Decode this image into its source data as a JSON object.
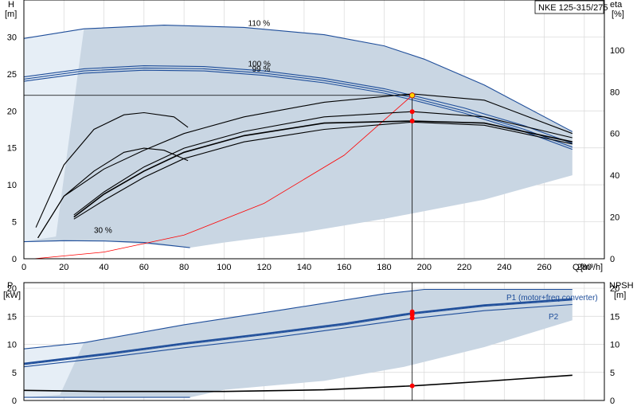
{
  "title": "NKE 125-315/275",
  "colors": {
    "band_fill": "#c9d6e3",
    "band_light": "#e6eef6",
    "curve_blue": "#1f4e9a",
    "curve_black": "#000000",
    "system_red": "#ff0000",
    "marker_yellow": "#ffd700"
  },
  "chart_data": [
    {
      "type": "line",
      "panel": "head",
      "ylabel": "H",
      "yunit": "[m]",
      "y2label": "eta",
      "y2unit": "[%]",
      "xlabel": "Q",
      "xunit": "[m³/h]",
      "xlim": [
        0,
        290
      ],
      "ylim": [
        0,
        35
      ],
      "y2lim": [
        0,
        124
      ],
      "x_ticks": [
        "0",
        "20",
        "40",
        "60",
        "80",
        "100",
        "120",
        "140",
        "160",
        "180",
        "200",
        "220",
        "240",
        "260",
        "280"
      ],
      "y_ticks": [
        "0",
        "5",
        "10",
        "15",
        "20",
        "25",
        "30"
      ],
      "y2_ticks": [
        "0",
        "20",
        "40",
        "60",
        "80",
        "100"
      ],
      "operating_point": {
        "q": 194,
        "h": 22.1
      },
      "speed_labels": [
        {
          "text": "110 %",
          "q": 112,
          "h": 31.5
        },
        {
          "text": "100 %",
          "q": 112,
          "h": 26.0
        },
        {
          "text": "99 %",
          "q": 114,
          "h": 25.3
        },
        {
          "text": "30 %",
          "q": 35,
          "h": 3.5
        }
      ],
      "series": [
        {
          "role": "head-110",
          "color": "blue",
          "points": [
            [
              0,
              29.8
            ],
            [
              30,
              31.1
            ],
            [
              70,
              31.6
            ],
            [
              110,
              31.3
            ],
            [
              150,
              30.3
            ],
            [
              180,
              28.8
            ],
            [
              200,
              27.0
            ],
            [
              230,
              23.5
            ],
            [
              274,
              17.2
            ]
          ]
        },
        {
          "role": "head-100",
          "color": "blue",
          "points": [
            [
              0,
              24.6
            ],
            [
              30,
              25.7
            ],
            [
              60,
              26.1
            ],
            [
              90,
              26.0
            ],
            [
              120,
              25.4
            ],
            [
              150,
              24.4
            ],
            [
              180,
              23.0
            ],
            [
              194,
              22.1
            ],
            [
              220,
              20.4
            ],
            [
              250,
              18.0
            ],
            [
              274,
              15.6
            ]
          ]
        },
        {
          "role": "head-100-b",
          "color": "blue",
          "points": [
            [
              0,
              24.3
            ],
            [
              30,
              25.4
            ],
            [
              60,
              25.8
            ],
            [
              90,
              25.7
            ],
            [
              120,
              25.1
            ],
            [
              150,
              24.1
            ],
            [
              180,
              22.7
            ],
            [
              194,
              21.8
            ],
            [
              220,
              20.0
            ],
            [
              250,
              17.5
            ],
            [
              274,
              15.1
            ]
          ]
        },
        {
          "role": "head-99",
          "color": "blue",
          "points": [
            [
              0,
              24.0
            ],
            [
              30,
              25.1
            ],
            [
              60,
              25.5
            ],
            [
              90,
              25.4
            ],
            [
              120,
              24.8
            ],
            [
              150,
              23.8
            ],
            [
              180,
              22.4
            ],
            [
              194,
              21.5
            ],
            [
              220,
              19.7
            ],
            [
              250,
              17.2
            ],
            [
              274,
              14.8
            ]
          ]
        },
        {
          "role": "head-30",
          "color": "blue",
          "points": [
            [
              0,
              2.3
            ],
            [
              20,
              2.45
            ],
            [
              40,
              2.4
            ],
            [
              60,
              2.2
            ],
            [
              83,
              1.5
            ]
          ]
        },
        {
          "role": "system",
          "color": "red",
          "points": [
            [
              5,
              0
            ],
            [
              40,
              0.9
            ],
            [
              80,
              3.2
            ],
            [
              120,
              7.5
            ],
            [
              160,
              14.0
            ],
            [
              194,
              22.1
            ]
          ]
        },
        {
          "role": "eta-lo",
          "color": "black",
          "axis": "y2",
          "points": [
            [
              7,
              10
            ],
            [
              20,
              30
            ],
            [
              40,
              43
            ],
            [
              60,
              52
            ],
            [
              80,
              60
            ],
            [
              110,
              68
            ],
            [
              150,
              75
            ],
            [
              194,
              79
            ],
            [
              230,
              76
            ],
            [
              274,
              60
            ]
          ]
        },
        {
          "role": "eta-mid",
          "color": "black",
          "axis": "y2",
          "points": [
            [
              25,
              19
            ],
            [
              40,
              28
            ],
            [
              60,
              39
            ],
            [
              80,
              48
            ],
            [
              110,
              56
            ],
            [
              150,
              62
            ],
            [
              194,
              65.5
            ],
            [
              230,
              64
            ],
            [
              274,
              55
            ]
          ]
        },
        {
          "role": "eta-main",
          "color": "black",
          "axis": "y2",
          "points": [
            [
              25,
              20
            ],
            [
              40,
              31
            ],
            [
              60,
              42
            ],
            [
              80,
              51
            ],
            [
              110,
              59
            ],
            [
              150,
              65
            ],
            [
              194,
              66
            ],
            [
              230,
              65
            ],
            [
              274,
              56
            ]
          ]
        },
        {
          "role": "eta-upper",
          "color": "black",
          "axis": "y2",
          "points": [
            [
              25,
              21
            ],
            [
              40,
              32
            ],
            [
              60,
              44
            ],
            [
              80,
              53
            ],
            [
              110,
              61
            ],
            [
              150,
              68
            ],
            [
              194,
              70.5
            ],
            [
              230,
              68
            ],
            [
              274,
              58
            ]
          ]
        },
        {
          "role": "eta-left-1",
          "color": "black",
          "axis": "y2",
          "points": [
            [
              6,
              15
            ],
            [
              20,
              45
            ],
            [
              35,
              62
            ],
            [
              50,
              69
            ],
            [
              60,
              70
            ],
            [
              75,
              68
            ],
            [
              82,
              63
            ]
          ]
        },
        {
          "role": "eta-left-2",
          "color": "black",
          "axis": "y2",
          "points": [
            [
              7,
              10
            ],
            [
              20,
              30
            ],
            [
              35,
              42
            ],
            [
              50,
              51
            ],
            [
              60,
              53
            ],
            [
              70,
              52
            ],
            [
              82,
              47
            ]
          ]
        }
      ]
    },
    {
      "type": "line",
      "panel": "power",
      "ylabel": "P",
      "yunit": "[kW]",
      "y2label": "NPSH",
      "y2unit": "[m]",
      "xlim": [
        0,
        290
      ],
      "ylim": [
        0,
        21
      ],
      "y2lim": [
        0,
        21
      ],
      "y_ticks": [
        "0",
        "5",
        "10",
        "15",
        "20"
      ],
      "y2_ticks": [
        "0",
        "5",
        "10",
        "15",
        "20"
      ],
      "legend": [
        {
          "text": "P1 (motor+freq.converter)",
          "color": "blue"
        },
        {
          "text": "P2",
          "color": "blue"
        }
      ],
      "series": [
        {
          "role": "p1-110",
          "color": "blue",
          "points": [
            [
              0,
              9.2
            ],
            [
              30,
              10.3
            ],
            [
              80,
              13.5
            ],
            [
              130,
              16.2
            ],
            [
              180,
              19.0
            ],
            [
              200,
              19.8
            ],
            [
              274,
              19.8
            ]
          ]
        },
        {
          "role": "p1-100",
          "color": "blue",
          "points": [
            [
              0,
              6.6
            ],
            [
              40,
              8.3
            ],
            [
              80,
              10.2
            ],
            [
              120,
              11.9
            ],
            [
              160,
              13.7
            ],
            [
              194,
              15.6
            ],
            [
              230,
              17.0
            ],
            [
              274,
              18.1
            ]
          ]
        },
        {
          "role": "p1-100-b",
          "color": "blue",
          "points": [
            [
              0,
              6.4
            ],
            [
              40,
              8.1
            ],
            [
              80,
              10.0
            ],
            [
              120,
              11.7
            ],
            [
              160,
              13.5
            ],
            [
              194,
              15.4
            ],
            [
              230,
              16.8
            ],
            [
              274,
              17.9
            ]
          ]
        },
        {
          "role": "p2-100",
          "color": "blue",
          "points": [
            [
              0,
              6.0
            ],
            [
              40,
              7.6
            ],
            [
              80,
              9.4
            ],
            [
              120,
              11.0
            ],
            [
              160,
              12.9
            ],
            [
              194,
              14.6
            ],
            [
              230,
              16.0
            ],
            [
              274,
              17.1
            ]
          ]
        },
        {
          "role": "p1-30",
          "color": "blue",
          "points": [
            [
              0,
              0.55
            ],
            [
              40,
              0.55
            ],
            [
              83,
              0.55
            ]
          ]
        },
        {
          "role": "npsh",
          "color": "black",
          "axis": "y2",
          "points": [
            [
              0,
              1.8
            ],
            [
              40,
              1.6
            ],
            [
              100,
              1.6
            ],
            [
              150,
              1.9
            ],
            [
              194,
              2.6
            ],
            [
              230,
              3.4
            ],
            [
              274,
              4.5
            ]
          ]
        }
      ],
      "operating_points": [
        {
          "q": 194,
          "value": 15.8
        },
        {
          "q": 194,
          "value": 15.3
        },
        {
          "q": 194,
          "value": 14.7
        },
        {
          "q": 194,
          "value": 2.6
        }
      ]
    }
  ]
}
